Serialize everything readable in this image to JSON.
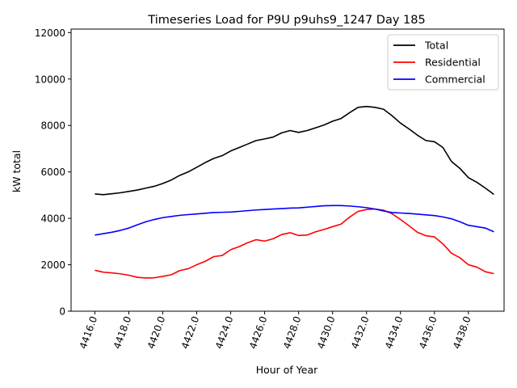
{
  "chart_data": {
    "type": "line",
    "title": "Timeseries Load for P9U p9uhs9_1247  Day 185",
    "xlabel": "Hour of Year",
    "ylabel": "kW total",
    "xlim": [
      4414.6,
      4440.1
    ],
    "ylim": [
      0,
      12150
    ],
    "xticks": [
      4416,
      4418,
      4420,
      4422,
      4424,
      4426,
      4428,
      4430,
      4432,
      4434,
      4436,
      4438
    ],
    "xtick_labels": [
      "4416.0",
      "4418.0",
      "4420.0",
      "4422.0",
      "4424.0",
      "4426.0",
      "4428.0",
      "4430.0",
      "4432.0",
      "4434.0",
      "4436.0",
      "4438.0"
    ],
    "yticks": [
      0,
      2000,
      4000,
      6000,
      8000,
      10000,
      12000
    ],
    "ytick_labels": [
      "0",
      "2000",
      "4000",
      "6000",
      "8000",
      "10000",
      "12000"
    ],
    "legend_position": "top-right",
    "x": [
      4416.0,
      4416.5,
      4417.0,
      4417.5,
      4418.0,
      4418.5,
      4419.0,
      4419.5,
      4420.0,
      4420.5,
      4421.0,
      4421.5,
      4422.0,
      4422.5,
      4423.0,
      4423.5,
      4424.0,
      4424.5,
      4425.0,
      4425.5,
      4426.0,
      4426.5,
      4427.0,
      4427.5,
      4428.0,
      4428.5,
      4429.0,
      4429.5,
      4430.0,
      4430.5,
      4431.0,
      4431.5,
      4432.0,
      4432.5,
      4433.0,
      4433.5,
      4434.0,
      4434.5,
      4435.0,
      4435.5,
      4436.0,
      4436.5,
      4437.0,
      4437.5,
      4438.0,
      4438.5,
      4439.0,
      4439.5
    ],
    "series": [
      {
        "name": "Total",
        "color": "#000000",
        "values": [
          5050,
          5020,
          5060,
          5100,
          5160,
          5220,
          5300,
          5380,
          5500,
          5650,
          5850,
          6000,
          6200,
          6400,
          6580,
          6700,
          6900,
          7050,
          7200,
          7350,
          7420,
          7500,
          7680,
          7780,
          7700,
          7780,
          7900,
          8020,
          8180,
          8300,
          8550,
          8780,
          8820,
          8780,
          8700,
          8420,
          8100,
          7850,
          7580,
          7350,
          7300,
          7050,
          6450,
          6150,
          5750,
          5550,
          5300,
          5030
        ]
      },
      {
        "name": "Residential",
        "color": "#ff0000",
        "values": [
          1760,
          1680,
          1650,
          1610,
          1550,
          1460,
          1430,
          1440,
          1500,
          1570,
          1750,
          1830,
          2000,
          2150,
          2350,
          2400,
          2650,
          2780,
          2950,
          3080,
          3020,
          3120,
          3300,
          3380,
          3260,
          3280,
          3420,
          3520,
          3640,
          3750,
          4050,
          4300,
          4380,
          4400,
          4350,
          4200,
          3950,
          3680,
          3400,
          3250,
          3200,
          2900,
          2500,
          2300,
          2000,
          1900,
          1700,
          1620
        ]
      },
      {
        "name": "Commercial",
        "color": "#0000ff",
        "values": [
          3280,
          3340,
          3400,
          3480,
          3580,
          3720,
          3850,
          3950,
          4030,
          4080,
          4130,
          4160,
          4190,
          4220,
          4250,
          4260,
          4270,
          4300,
          4330,
          4360,
          4380,
          4400,
          4420,
          4440,
          4450,
          4480,
          4510,
          4540,
          4550,
          4550,
          4530,
          4500,
          4460,
          4400,
          4320,
          4250,
          4230,
          4210,
          4180,
          4150,
          4120,
          4060,
          3980,
          3850,
          3700,
          3640,
          3580,
          3420
        ]
      }
    ]
  }
}
